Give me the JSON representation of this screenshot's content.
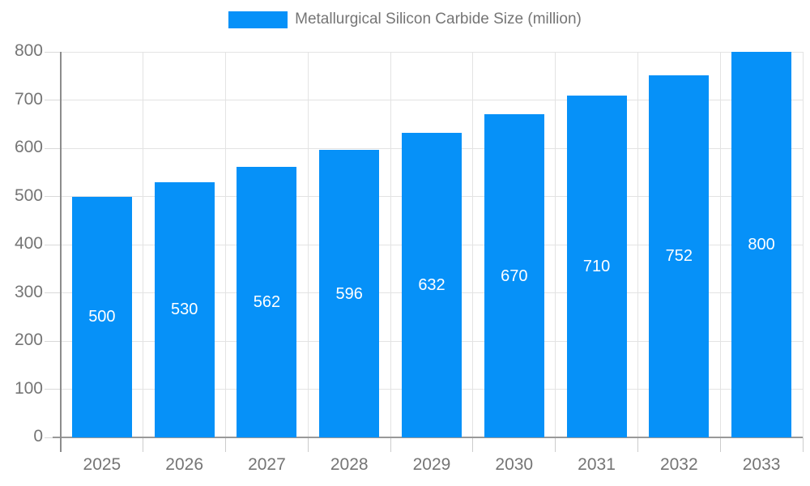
{
  "legend": {
    "label": "Metallurgical Silicon Carbide Size (million)",
    "swatch_color": "#0691f8"
  },
  "chart_data": {
    "type": "bar",
    "title": "Metallurgical Silicon Carbide Size (million)",
    "series_name": "Metallurgical Silicon Carbide Size (million)",
    "categories": [
      "2025",
      "2026",
      "2027",
      "2028",
      "2029",
      "2030",
      "2031",
      "2032",
      "2033"
    ],
    "values": [
      500,
      530,
      562,
      596,
      632,
      670,
      710,
      752,
      800
    ],
    "value_labels": [
      "500",
      "530",
      "562",
      "596",
      "632",
      "670",
      "710",
      "752",
      "800"
    ],
    "xlabel": "",
    "ylabel": "",
    "ylim": [
      0,
      800
    ],
    "y_tick_step": 100,
    "y_tick_labels": [
      "0",
      "100",
      "200",
      "300",
      "400",
      "500",
      "600",
      "700",
      "800"
    ],
    "grid": true,
    "legend_position": "top"
  },
  "colors": {
    "bar": "#0691f8",
    "grid": "#e3e3e3",
    "axis": "#999999",
    "tick": "#cccccc",
    "text": "#757575",
    "value_label": "#ffffff"
  }
}
